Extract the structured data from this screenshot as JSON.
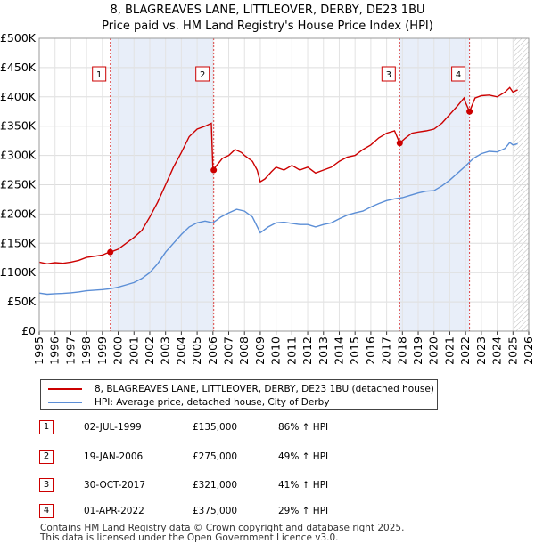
{
  "chart_data": {
    "type": "line",
    "title": "8, BLAGREAVES LANE, LITTLEOVER, DERBY, DE23 1BU",
    "subtitle": "Price paid vs. HM Land Registry's House Price Index (HPI)",
    "xlim": [
      1995,
      2026
    ],
    "ylim": [
      0,
      500000
    ],
    "x_ticks": [
      "1995",
      "1996",
      "1997",
      "1998",
      "1999",
      "2000",
      "2001",
      "2002",
      "2003",
      "2004",
      "2005",
      "2006",
      "2007",
      "2008",
      "2009",
      "2010",
      "2011",
      "2012",
      "2013",
      "2014",
      "2015",
      "2016",
      "2017",
      "2018",
      "2019",
      "2020",
      "2021",
      "2022",
      "2023",
      "2024",
      "2025",
      "2026"
    ],
    "y_ticks": [
      {
        "value": 0,
        "label": "£0"
      },
      {
        "value": 50000,
        "label": "£50K"
      },
      {
        "value": 100000,
        "label": "£100K"
      },
      {
        "value": 150000,
        "label": "£150K"
      },
      {
        "value": 200000,
        "label": "£200K"
      },
      {
        "value": 250000,
        "label": "£250K"
      },
      {
        "value": 300000,
        "label": "£300K"
      },
      {
        "value": 350000,
        "label": "£350K"
      },
      {
        "value": 400000,
        "label": "£400K"
      },
      {
        "value": 450000,
        "label": "£450K"
      },
      {
        "value": 500000,
        "label": "£500K"
      }
    ],
    "series": [
      {
        "name": "8, BLAGREAVES LANE, LITTLEOVER, DERBY, DE23 1BU (detached house)",
        "color": "#cc0000",
        "points": [
          [
            1995.0,
            118000
          ],
          [
            1995.5,
            115000
          ],
          [
            1996.0,
            117000
          ],
          [
            1996.5,
            116000
          ],
          [
            1997.0,
            118000
          ],
          [
            1997.5,
            121000
          ],
          [
            1998.0,
            126000
          ],
          [
            1998.5,
            128000
          ],
          [
            1999.0,
            130000
          ],
          [
            1999.25,
            133000
          ],
          [
            1999.5,
            135000
          ],
          [
            2000.0,
            140000
          ],
          [
            2000.5,
            150000
          ],
          [
            2001.0,
            160000
          ],
          [
            2001.5,
            172000
          ],
          [
            2002.0,
            195000
          ],
          [
            2002.5,
            220000
          ],
          [
            2003.0,
            250000
          ],
          [
            2003.5,
            280000
          ],
          [
            2004.0,
            305000
          ],
          [
            2004.5,
            332000
          ],
          [
            2005.0,
            345000
          ],
          [
            2005.5,
            350000
          ],
          [
            2005.9,
            355000
          ],
          [
            2006.0,
            275000
          ],
          [
            2006.3,
            285000
          ],
          [
            2006.6,
            295000
          ],
          [
            2007.0,
            300000
          ],
          [
            2007.4,
            310000
          ],
          [
            2007.8,
            305000
          ],
          [
            2008.0,
            300000
          ],
          [
            2008.5,
            290000
          ],
          [
            2008.8,
            275000
          ],
          [
            2009.0,
            255000
          ],
          [
            2009.3,
            260000
          ],
          [
            2009.7,
            272000
          ],
          [
            2010.0,
            280000
          ],
          [
            2010.5,
            275000
          ],
          [
            2011.0,
            283000
          ],
          [
            2011.5,
            275000
          ],
          [
            2012.0,
            280000
          ],
          [
            2012.5,
            270000
          ],
          [
            2013.0,
            275000
          ],
          [
            2013.5,
            280000
          ],
          [
            2014.0,
            290000
          ],
          [
            2014.5,
            297000
          ],
          [
            2015.0,
            300000
          ],
          [
            2015.5,
            310000
          ],
          [
            2016.0,
            318000
          ],
          [
            2016.5,
            330000
          ],
          [
            2017.0,
            338000
          ],
          [
            2017.5,
            342000
          ],
          [
            2017.83,
            321000
          ],
          [
            2018.2,
            330000
          ],
          [
            2018.6,
            338000
          ],
          [
            2019.0,
            340000
          ],
          [
            2019.5,
            342000
          ],
          [
            2020.0,
            345000
          ],
          [
            2020.5,
            355000
          ],
          [
            2021.0,
            370000
          ],
          [
            2021.5,
            385000
          ],
          [
            2021.9,
            398000
          ],
          [
            2022.0,
            390000
          ],
          [
            2022.25,
            375000
          ],
          [
            2022.6,
            398000
          ],
          [
            2023.0,
            402000
          ],
          [
            2023.5,
            403000
          ],
          [
            2024.0,
            400000
          ],
          [
            2024.5,
            408000
          ],
          [
            2024.8,
            416000
          ],
          [
            2025.0,
            408000
          ],
          [
            2025.3,
            412000
          ]
        ]
      },
      {
        "name": "HPI: Average price, detached house, City of Derby",
        "color": "#5b8ed6",
        "points": [
          [
            1995.0,
            65000
          ],
          [
            1995.5,
            63000
          ],
          [
            1996.0,
            64000
          ],
          [
            1996.5,
            64500
          ],
          [
            1997.0,
            65500
          ],
          [
            1997.5,
            67000
          ],
          [
            1998.0,
            69000
          ],
          [
            1998.5,
            70000
          ],
          [
            1999.0,
            71000
          ],
          [
            1999.5,
            72500
          ],
          [
            2000.0,
            75000
          ],
          [
            2000.5,
            79000
          ],
          [
            2001.0,
            83000
          ],
          [
            2001.5,
            90000
          ],
          [
            2002.0,
            100000
          ],
          [
            2002.5,
            115000
          ],
          [
            2003.0,
            135000
          ],
          [
            2003.5,
            150000
          ],
          [
            2004.0,
            165000
          ],
          [
            2004.5,
            178000
          ],
          [
            2005.0,
            185000
          ],
          [
            2005.5,
            188000
          ],
          [
            2006.0,
            185000
          ],
          [
            2006.5,
            195000
          ],
          [
            2007.0,
            202000
          ],
          [
            2007.5,
            208000
          ],
          [
            2008.0,
            205000
          ],
          [
            2008.5,
            195000
          ],
          [
            2009.0,
            168000
          ],
          [
            2009.5,
            178000
          ],
          [
            2010.0,
            185000
          ],
          [
            2010.5,
            186000
          ],
          [
            2011.0,
            184000
          ],
          [
            2011.5,
            182000
          ],
          [
            2012.0,
            182000
          ],
          [
            2012.5,
            178000
          ],
          [
            2013.0,
            182000
          ],
          [
            2013.5,
            185000
          ],
          [
            2014.0,
            192000
          ],
          [
            2014.5,
            198000
          ],
          [
            2015.0,
            202000
          ],
          [
            2015.5,
            205000
          ],
          [
            2016.0,
            212000
          ],
          [
            2016.5,
            218000
          ],
          [
            2017.0,
            223000
          ],
          [
            2017.5,
            226000
          ],
          [
            2018.0,
            228000
          ],
          [
            2018.5,
            232000
          ],
          [
            2019.0,
            236000
          ],
          [
            2019.5,
            239000
          ],
          [
            2020.0,
            240000
          ],
          [
            2020.5,
            248000
          ],
          [
            2021.0,
            258000
          ],
          [
            2021.5,
            270000
          ],
          [
            2022.0,
            282000
          ],
          [
            2022.5,
            295000
          ],
          [
            2023.0,
            303000
          ],
          [
            2023.5,
            307000
          ],
          [
            2024.0,
            306000
          ],
          [
            2024.5,
            312000
          ],
          [
            2024.8,
            322000
          ],
          [
            2025.0,
            318000
          ],
          [
            2025.3,
            320000
          ]
        ]
      }
    ],
    "sales": [
      {
        "id": "1",
        "date": "02-JUL-1999",
        "x": 1999.5,
        "price_value": 135000
      },
      {
        "id": "2",
        "date": "19-JAN-2006",
        "x": 2006.05,
        "price_value": 275000
      },
      {
        "id": "3",
        "date": "30-OCT-2017",
        "x": 2017.83,
        "price_value": 321000
      },
      {
        "id": "4",
        "date": "01-APR-2022",
        "x": 2022.25,
        "price_value": 375000
      }
    ],
    "shaded_ranges": [
      [
        1999.5,
        2006.05
      ],
      [
        2017.83,
        2022.25
      ]
    ],
    "hatched_range": [
      2025.0,
      2026.0
    ]
  },
  "legend": {
    "red_label": "8, BLAGREAVES LANE, LITTLEOVER, DERBY, DE23 1BU (detached house)",
    "blue_label": "HPI: Average price, detached house, City of Derby"
  },
  "transactions": [
    {
      "id": "1",
      "date": "02-JUL-1999",
      "price": "£135,000",
      "hpi": "86% ↑ HPI"
    },
    {
      "id": "2",
      "date": "19-JAN-2006",
      "price": "£275,000",
      "hpi": "49% ↑ HPI"
    },
    {
      "id": "3",
      "date": "30-OCT-2017",
      "price": "£321,000",
      "hpi": "41% ↑ HPI"
    },
    {
      "id": "4",
      "date": "01-APR-2022",
      "price": "£375,000",
      "hpi": "29% ↑ HPI"
    }
  ],
  "footer": {
    "line1": "Contains HM Land Registry data © Crown copyright and database right 2025.",
    "line2": "This data is licensed under the Open Government Licence v3.0."
  }
}
